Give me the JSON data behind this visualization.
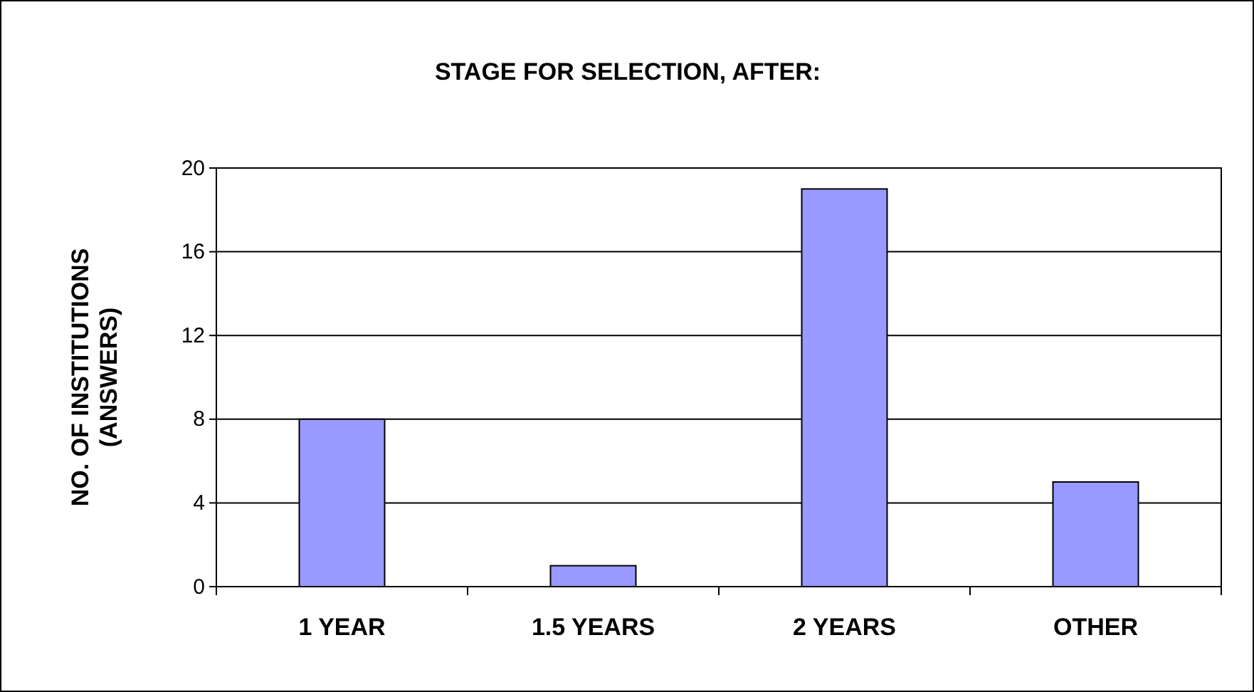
{
  "chart_data": {
    "type": "bar",
    "title": "STAGE FOR SELECTION, AFTER:",
    "ylabel": "NO. OF INSTITUTIONS (ANSWERS)",
    "categories": [
      "1 YEAR",
      "1.5 YEARS",
      "2 YEARS",
      "OTHER"
    ],
    "values": [
      8,
      1,
      19,
      5
    ],
    "color": "#9999ff",
    "ylim": [
      0,
      20
    ],
    "yticks": [
      0,
      4,
      8,
      12,
      16,
      20
    ],
    "grid": "y"
  }
}
